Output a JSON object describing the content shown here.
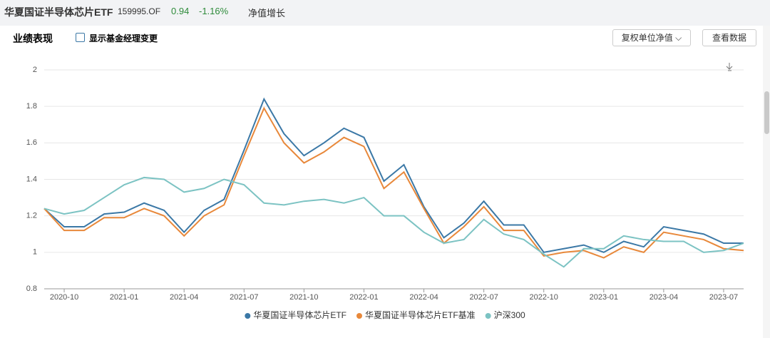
{
  "header": {
    "title": "华夏国证半导体芯片ETF",
    "code": "159995.OF",
    "nav": "0.94",
    "change": "-1.16%",
    "tab": "净值增长"
  },
  "panel": {
    "title": "业绩表现",
    "checkbox": "显示基金经理变更",
    "dropdown": "复权单位净值",
    "button": "查看数据"
  },
  "chart_data": {
    "type": "line",
    "categories": [
      null,
      "2020-10",
      null,
      null,
      "2021-01",
      null,
      null,
      "2021-04",
      null,
      null,
      "2021-07",
      null,
      null,
      "2021-10",
      null,
      null,
      "2022-01",
      null,
      null,
      "2022-04",
      null,
      null,
      "2022-07",
      null,
      null,
      "2022-10",
      null,
      null,
      "2023-01",
      null,
      null,
      "2023-04",
      null,
      null,
      "2023-07",
      null
    ],
    "ylim": [
      0.8,
      2
    ],
    "yticks": [
      0.8,
      1,
      1.2,
      1.4,
      1.6,
      1.8,
      2
    ],
    "grid": true,
    "series": [
      {
        "name": "华夏国证半导体芯片ETF",
        "color": "#3b78a6",
        "values": [
          1.24,
          1.14,
          1.14,
          1.21,
          1.22,
          1.27,
          1.23,
          1.11,
          1.23,
          1.29,
          1.56,
          1.84,
          1.65,
          1.53,
          1.6,
          1.68,
          1.63,
          1.39,
          1.48,
          1.25,
          1.08,
          1.16,
          1.28,
          1.15,
          1.15,
          1.0,
          1.02,
          1.04,
          1.0,
          1.06,
          1.03,
          1.14,
          1.12,
          1.1,
          1.05,
          1.05
        ]
      },
      {
        "name": "华夏国证半导体芯片ETF基准",
        "color": "#e8883a",
        "values": [
          1.24,
          1.12,
          1.12,
          1.19,
          1.19,
          1.24,
          1.2,
          1.09,
          1.2,
          1.26,
          1.53,
          1.79,
          1.6,
          1.49,
          1.55,
          1.63,
          1.58,
          1.35,
          1.44,
          1.24,
          1.05,
          1.14,
          1.25,
          1.12,
          1.12,
          0.98,
          1.0,
          1.01,
          0.97,
          1.03,
          1.0,
          1.11,
          1.09,
          1.07,
          1.02,
          1.01
        ]
      },
      {
        "name": "沪深300",
        "color": "#7cc3c3",
        "values": [
          1.24,
          1.21,
          1.23,
          1.3,
          1.37,
          1.41,
          1.4,
          1.33,
          1.35,
          1.4,
          1.37,
          1.27,
          1.26,
          1.28,
          1.29,
          1.27,
          1.3,
          1.2,
          1.2,
          1.11,
          1.05,
          1.07,
          1.18,
          1.1,
          1.07,
          0.99,
          0.92,
          1.02,
          1.02,
          1.09,
          1.07,
          1.06,
          1.06,
          1.0,
          1.01,
          1.05
        ]
      }
    ]
  }
}
